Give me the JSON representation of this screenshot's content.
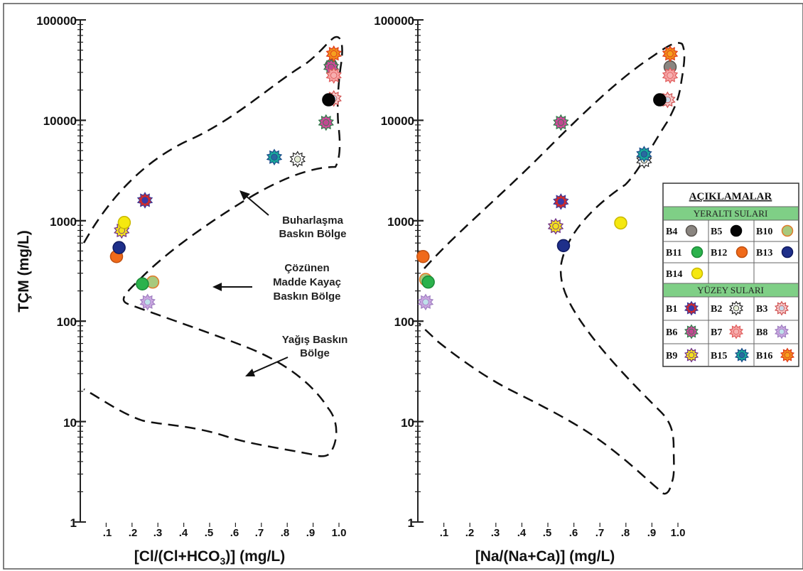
{
  "chart_data": [
    {
      "type": "scatter",
      "title": "",
      "xlabel": "[Cl/(Cl+HCO3)] (mg/L)",
      "ylabel": "TÇM (mg/L)",
      "xlim": [
        0,
        1.0
      ],
      "ylim": [
        1,
        100000
      ],
      "yscale": "log",
      "xticks": [
        ".1",
        ".2",
        ".3",
        ".4",
        ".5",
        ".6",
        ".7",
        ".8",
        ".9",
        "1.0"
      ],
      "yticks": [
        "1",
        "10",
        "100",
        "1000",
        "10000",
        "100000"
      ],
      "annotations": [
        {
          "lines": [
            "Buharlaşma",
            "Baskın Bölge"
          ]
        },
        {
          "lines": [
            "Çözünen",
            "Madde Kayaç",
            "Baskın Bölge"
          ]
        },
        {
          "lines": [
            "Yağış Baskın",
            "Bölge"
          ]
        }
      ],
      "points": [
        {
          "id": "B1",
          "x": 0.25,
          "y": 1600
        },
        {
          "id": "B2",
          "x": 0.84,
          "y": 4100
        },
        {
          "id": "B3",
          "x": 0.98,
          "y": 16500
        },
        {
          "id": "B4",
          "x": 0.97,
          "y": 35000
        },
        {
          "id": "B5",
          "x": 0.96,
          "y": 16000
        },
        {
          "id": "B6",
          "x": 0.97,
          "y": 34000
        },
        {
          "id": "B6",
          "x": 0.95,
          "y": 9500
        },
        {
          "id": "B7",
          "x": 0.98,
          "y": 28000
        },
        {
          "id": "B8",
          "x": 0.26,
          "y": 155
        },
        {
          "id": "B9",
          "x": 0.16,
          "y": 800
        },
        {
          "id": "B10",
          "x": 0.28,
          "y": 245
        },
        {
          "id": "B11",
          "x": 0.24,
          "y": 235
        },
        {
          "id": "B12",
          "x": 0.14,
          "y": 440
        },
        {
          "id": "B13",
          "x": 0.15,
          "y": 540
        },
        {
          "id": "B14",
          "x": 0.17,
          "y": 960
        },
        {
          "id": "B15",
          "x": 0.75,
          "y": 4300
        },
        {
          "id": "B16",
          "x": 0.98,
          "y": 46000
        }
      ]
    },
    {
      "type": "scatter",
      "title": "",
      "xlabel": "[Na/(Na+Ca)] (mg/L)",
      "ylabel": "",
      "xlim": [
        0,
        1.0
      ],
      "ylim": [
        1,
        100000
      ],
      "yscale": "log",
      "xticks": [
        ".1",
        ".2",
        ".3",
        ".4",
        ".5",
        ".6",
        ".7",
        ".8",
        ".9",
        "1.0"
      ],
      "yticks": [
        "1",
        "10",
        "100",
        "1000",
        "10000",
        "100000"
      ],
      "points": [
        {
          "id": "B1",
          "x": 0.55,
          "y": 1550
        },
        {
          "id": "B2",
          "x": 0.87,
          "y": 4000
        },
        {
          "id": "B3",
          "x": 0.96,
          "y": 16000
        },
        {
          "id": "B4",
          "x": 0.97,
          "y": 34000
        },
        {
          "id": "B5",
          "x": 0.93,
          "y": 16000
        },
        {
          "id": "B6",
          "x": 0.55,
          "y": 9500
        },
        {
          "id": "B7",
          "x": 0.97,
          "y": 28000
        },
        {
          "id": "B8",
          "x": 0.03,
          "y": 155
        },
        {
          "id": "B9",
          "x": 0.53,
          "y": 880
        },
        {
          "id": "B10",
          "x": 0.03,
          "y": 260
        },
        {
          "id": "B11",
          "x": 0.04,
          "y": 245
        },
        {
          "id": "B12",
          "x": 0.02,
          "y": 440
        },
        {
          "id": "B13",
          "x": 0.56,
          "y": 565
        },
        {
          "id": "B14",
          "x": 0.78,
          "y": 950
        },
        {
          "id": "B15",
          "x": 0.87,
          "y": 4600
        },
        {
          "id": "B16",
          "x": 0.97,
          "y": 46000
        }
      ]
    }
  ],
  "legend": {
    "title": "AÇIKLAMALAR",
    "section1": "YERALTI  SULARI",
    "section2": "YÜZEY SULARI",
    "groundwater": [
      "B4",
      "B5",
      "B10",
      "B11",
      "B12",
      "B13",
      "B14"
    ],
    "surface": [
      "B1",
      "B2",
      "B3",
      "B6",
      "B7",
      "B8",
      "B9",
      "B15",
      "B16"
    ]
  },
  "styles": {
    "B1": {
      "shape": "star",
      "fill": "#d42a2a",
      "stroke": "#3a3a9a",
      "inner": "#3a3aa8"
    },
    "B2": {
      "shape": "star",
      "fill": "#ffffff",
      "stroke": "#222222",
      "inner": "#e8f0d8"
    },
    "B3": {
      "shape": "star",
      "fill": "#f6c9c9",
      "stroke": "#cf5050",
      "inner": "#c8d8e8"
    },
    "B4": {
      "shape": "circle",
      "fill": "#8a8580",
      "stroke": "#5a5550"
    },
    "B5": {
      "shape": "circle",
      "fill": "#050505",
      "stroke": "#000000"
    },
    "B6": {
      "shape": "star",
      "fill": "#d0489a",
      "stroke": "#2f7d4a",
      "inner": "#c04890"
    },
    "B7": {
      "shape": "star",
      "fill": "#f5a3a3",
      "stroke": "#e05b5b",
      "inner": "#f7b0b0"
    },
    "B8": {
      "shape": "star",
      "fill": "#c9a6e0",
      "stroke": "#9f7fc0",
      "inner": "#bfe0ea"
    },
    "B9": {
      "shape": "star",
      "fill": "#f2e020",
      "stroke": "#6a2a8a",
      "inner": "#f2e020"
    },
    "B10": {
      "shape": "circle",
      "fill": "#a8c97d",
      "stroke": "#e07a2a"
    },
    "B11": {
      "shape": "circle",
      "fill": "#2bb24c",
      "stroke": "#1c8a38"
    },
    "B12": {
      "shape": "circle",
      "fill": "#f06a1a",
      "stroke": "#c05010"
    },
    "B13": {
      "shape": "circle",
      "fill": "#1e2f8a",
      "stroke": "#101a60"
    },
    "B14": {
      "shape": "circle",
      "fill": "#f5e80f",
      "stroke": "#c9b800"
    },
    "B15": {
      "shape": "star",
      "fill": "#1aa89a",
      "stroke": "#1a4a8a",
      "inner": "#2a6aa0"
    },
    "B16": {
      "shape": "star",
      "fill": "#f08a1a",
      "stroke": "#e03a1a",
      "inner": "#f5a020"
    }
  }
}
